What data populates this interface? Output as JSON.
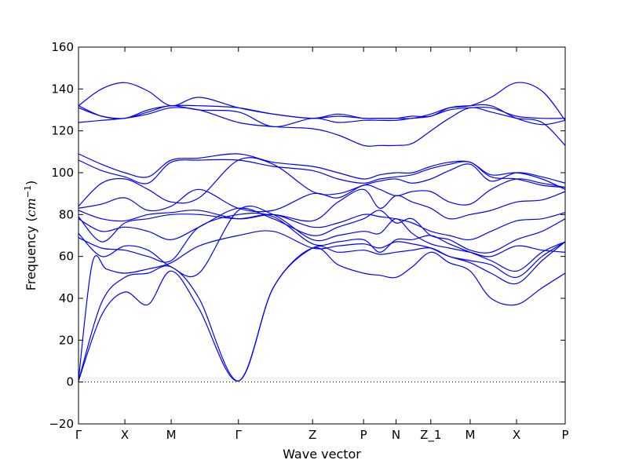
{
  "chart_data": {
    "type": "line",
    "title": "",
    "xlabel": "Wave vector",
    "ylabel_text": "Frequency (",
    "ylabel_math": "cm",
    "ylabel_exp": "−1",
    "ylabel_close": ")",
    "ylim": [
      -20,
      160
    ],
    "yticks": [
      -20,
      0,
      20,
      40,
      60,
      80,
      100,
      120,
      140,
      160
    ],
    "ytick_labels": [
      "−20",
      "0",
      "20",
      "40",
      "60",
      "80",
      "100",
      "120",
      "140",
      "160"
    ],
    "xlim": [
      0,
      10.5
    ],
    "xticks": [
      {
        "x": 0,
        "label": "Γ"
      },
      {
        "x": 1,
        "label": "X"
      },
      {
        "x": 2,
        "label": "M"
      },
      {
        "x": 3.45,
        "label": "Γ"
      },
      {
        "x": 5.05,
        "label": "Z"
      },
      {
        "x": 6.15,
        "label": "P"
      },
      {
        "x": 6.85,
        "label": "N"
      },
      {
        "x": 7.6,
        "label": "Z_1"
      },
      {
        "x": 8.45,
        "label": "M"
      },
      {
        "x": 9.45,
        "label": "X"
      },
      {
        "x": 10.5,
        "label": "P"
      }
    ],
    "zero_line": {
      "y": 0,
      "style": "dotted"
    },
    "grid": false,
    "legend": "none",
    "line_color": "#0000ff",
    "series": [
      {
        "x": [
          0,
          0.5,
          1,
          1.5,
          2,
          2.6,
          3.45,
          4.2,
          5.05,
          5.6,
          6.15,
          6.5,
          6.85,
          7.2,
          7.6,
          8.0,
          8.45,
          8.9,
          9.45,
          10,
          10.5
        ],
        "y": [
          0.5,
          32,
          43,
          37,
          53,
          35,
          0.5,
          45,
          64,
          56,
          52,
          51,
          50,
          55,
          62,
          57,
          53,
          40,
          37,
          45,
          52
        ]
      },
      {
        "x": [
          0,
          0.5,
          1,
          1.5,
          2,
          2.6,
          3.45,
          4.2,
          5.05,
          5.6,
          6.15,
          6.5,
          6.85,
          7.2,
          7.6,
          8.0,
          8.45,
          8.9,
          9.45,
          10,
          10.5
        ],
        "y": [
          0.5,
          38,
          50,
          52,
          55,
          40,
          0.5,
          45,
          64,
          62,
          63,
          61,
          62,
          63,
          64,
          60,
          57,
          52,
          47,
          58,
          67
        ]
      },
      {
        "x": [
          0,
          0.3,
          0.6,
          1,
          1.5,
          2,
          2.6,
          3.45,
          4.2,
          5.05,
          5.6,
          6.15,
          6.5,
          6.85,
          7.2,
          7.6,
          8.0,
          8.45,
          8.9,
          9.45,
          10,
          10.5
        ],
        "y": [
          1,
          57,
          54,
          52,
          54,
          57,
          65,
          70,
          72,
          64,
          65,
          66,
          64,
          67,
          66,
          64,
          60,
          58,
          56,
          50,
          60,
          67
        ]
      },
      {
        "x": [
          0,
          0.5,
          1,
          1.5,
          2,
          2.6,
          3.45,
          4.2,
          5.05,
          5.6,
          6.15,
          6.5,
          6.85,
          7.2,
          7.6,
          8.0,
          8.45,
          8.9,
          9.45,
          10,
          10.5
        ],
        "y": [
          69,
          64,
          63,
          60,
          58,
          74,
          80,
          79,
          66,
          67,
          68,
          62,
          68,
          68,
          70,
          66,
          62,
          58,
          53,
          62,
          67
        ]
      },
      {
        "x": [
          0,
          0.5,
          1,
          1.5,
          2,
          2.6,
          3.45,
          4.2,
          5.05,
          5.6,
          6.15,
          6.5,
          6.85,
          7.2,
          7.6,
          8.0,
          8.45,
          8.9,
          9.45,
          10,
          10.5
        ],
        "y": [
          71,
          60,
          65,
          63,
          55,
          52,
          82,
          80,
          68,
          70,
          72,
          71,
          78,
          71,
          66,
          64,
          62,
          60,
          65,
          63,
          62
        ]
      },
      {
        "x": [
          0,
          0.5,
          1,
          1.5,
          2,
          2.6,
          3.45,
          4.2,
          5.05,
          5.6,
          6.15,
          6.5,
          6.85,
          7.2,
          7.6,
          8.0,
          8.45,
          8.9,
          9.45,
          10,
          10.5
        ],
        "y": [
          78,
          72,
          74,
          72,
          68,
          74,
          83,
          78,
          70,
          74,
          78,
          82,
          76,
          78,
          70,
          68,
          63,
          62,
          68,
          72,
          78
        ]
      },
      {
        "x": [
          0,
          0.5,
          1,
          1.5,
          2,
          2.6,
          3.45,
          4.2,
          5.05,
          5.6,
          6.15,
          6.5,
          6.85,
          7.2,
          7.6,
          8.0,
          8.45,
          8.9,
          9.45,
          10,
          10.5
        ],
        "y": [
          79,
          67,
          76,
          78,
          80,
          80,
          78,
          80,
          74,
          76,
          80,
          79,
          78,
          76,
          72,
          70,
          68,
          72,
          77,
          78,
          81
        ]
      },
      {
        "x": [
          0,
          0.5,
          1,
          1.5,
          2,
          2.6,
          3.45,
          4.2,
          5.05,
          5.6,
          6.15,
          6.5,
          6.85,
          7.2,
          7.6,
          8.0,
          8.45,
          8.9,
          9.45,
          10,
          10.5
        ],
        "y": [
          82,
          78,
          77,
          80,
          81,
          82,
          78,
          80,
          77,
          86,
          92,
          83,
          89,
          86,
          83,
          78,
          80,
          82,
          86,
          87,
          91
        ]
      },
      {
        "x": [
          0,
          0.5,
          1,
          1.5,
          2,
          2.6,
          3.45,
          4.2,
          5.05,
          5.6,
          6.15,
          6.5,
          6.85,
          7.2,
          7.6,
          8.0,
          8.45,
          8.9,
          9.45,
          10,
          10.5
        ],
        "y": [
          83,
          85,
          88,
          82,
          84,
          92,
          83,
          82,
          90,
          88,
          94,
          92,
          89,
          91,
          91,
          86,
          85,
          92,
          97,
          95,
          93
        ]
      },
      {
        "x": [
          0,
          0.5,
          1,
          1.5,
          2,
          2.6,
          3.45,
          4.2,
          5.05,
          5.6,
          6.15,
          6.5,
          6.85,
          7.2,
          7.6,
          8.0,
          8.45,
          8.9,
          9.45,
          10,
          10.5
        ],
        "y": [
          84,
          95,
          97,
          92,
          86,
          88,
          106,
          104,
          91,
          90,
          94,
          96,
          97,
          95,
          97,
          101,
          104,
          96,
          100,
          98,
          95
        ]
      },
      {
        "x": [
          0,
          0.5,
          1,
          1.5,
          2,
          2.6,
          3.45,
          4.2,
          5.05,
          5.6,
          6.15,
          6.5,
          6.85,
          7.2,
          7.6,
          8.0,
          8.45,
          8.9,
          9.45,
          10,
          10.5
        ],
        "y": [
          106,
          101,
          98,
          95,
          105,
          106,
          106,
          103,
          101,
          97,
          95,
          97,
          98,
          99,
          102,
          104,
          105,
          98,
          97,
          94,
          93
        ]
      },
      {
        "x": [
          0,
          0.5,
          1,
          1.5,
          2,
          2.6,
          3.45,
          4.2,
          5.05,
          5.6,
          6.15,
          6.5,
          6.85,
          7.2,
          7.6,
          8.0,
          8.45,
          8.9,
          9.45,
          10,
          10.5
        ],
        "y": [
          109,
          104,
          100,
          98,
          106,
          107,
          109,
          105,
          103,
          100,
          97,
          99,
          100,
          100,
          103,
          105,
          105,
          99,
          100,
          97,
          92
        ]
      },
      {
        "x": [
          0,
          0.5,
          1,
          1.5,
          2,
          2.6,
          3.45,
          4.2,
          5.05,
          5.6,
          6.15,
          6.5,
          6.85,
          7.2,
          7.6,
          8.0,
          8.45,
          8.9,
          9.45,
          10,
          10.5
        ],
        "y": [
          124,
          125,
          126,
          128,
          131,
          130,
          124,
          122,
          121,
          118,
          113,
          113,
          113,
          114,
          120,
          126,
          131,
          129,
          126,
          124,
          113
        ]
      },
      {
        "x": [
          0,
          0.5,
          1,
          1.5,
          2,
          2.6,
          3.45,
          4.2,
          5.05,
          5.6,
          6.15,
          6.5,
          6.85,
          7.2,
          7.6,
          8.0,
          8.45,
          8.9,
          9.45,
          10,
          10.5
        ],
        "y": [
          131,
          127,
          126,
          129,
          132,
          130,
          129,
          122,
          126,
          124,
          125,
          125,
          125,
          126,
          127,
          130,
          131,
          131,
          127,
          126,
          126
        ]
      },
      {
        "x": [
          0,
          0.5,
          1,
          1.5,
          2,
          2.6,
          3.45,
          4.2,
          5.05,
          5.6,
          6.15,
          6.5,
          6.85,
          7.2,
          7.6,
          8.0,
          8.45,
          8.9,
          9.45,
          10,
          10.5
        ],
        "y": [
          132,
          127,
          126,
          130,
          132,
          132,
          131,
          128,
          126,
          127,
          126,
          126,
          126,
          127,
          127,
          131,
          132,
          132,
          126,
          123,
          125
        ]
      },
      {
        "x": [
          0,
          0.5,
          1,
          1.5,
          2,
          2.6,
          3.45,
          4.2,
          5.05,
          5.6,
          6.15,
          6.5,
          6.85,
          7.2,
          7.6,
          8.0,
          8.45,
          8.9,
          9.45,
          10,
          10.5
        ],
        "y": [
          132,
          140,
          143,
          139,
          132,
          136,
          131,
          128,
          126,
          128,
          126,
          126,
          126,
          126,
          128,
          131,
          132,
          136,
          143,
          139,
          125
        ]
      }
    ]
  }
}
